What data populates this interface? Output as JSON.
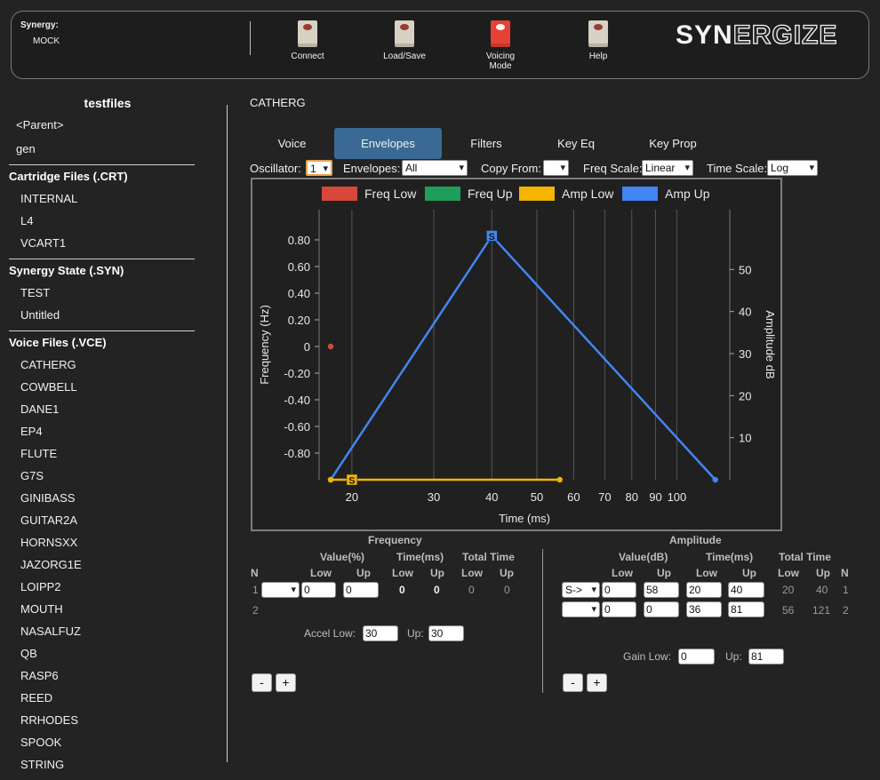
{
  "header": {
    "synergy_label": "Synergy:",
    "synergy_value": "MOCK",
    "buttons": [
      {
        "label_lines": [
          "Connect"
        ],
        "lit": false
      },
      {
        "label_lines": [
          "Load/Save"
        ],
        "lit": false
      },
      {
        "label_lines": [
          "Voicing",
          "Mode"
        ],
        "lit": true
      },
      {
        "label_lines": [
          "Help"
        ],
        "lit": false
      }
    ],
    "logo_solid": "SYN",
    "logo_outline": "ERGIZE"
  },
  "sidebar": {
    "title": "testfiles",
    "top_items": [
      "<Parent>",
      "gen"
    ],
    "sections": [
      {
        "heading": "Cartridge Files (.CRT)",
        "items": [
          "INTERNAL",
          "L4",
          "VCART1"
        ]
      },
      {
        "heading": "Synergy State (.SYN)",
        "items": [
          "TEST",
          "Untitled"
        ]
      },
      {
        "heading": "Voice Files (.VCE)",
        "items": [
          "CATHERG",
          "COWBELL",
          "DANE1",
          "EP4",
          "FLUTE",
          "G7S",
          "GINIBASS",
          "GUITAR2A",
          "HORNSXX",
          "JAZORG1E",
          "LOIPP2",
          "MOUTH",
          "NASALFUZ",
          "QB",
          "RASP6",
          "REED",
          "RRHODES",
          "SPOOK",
          "STRING"
        ]
      }
    ]
  },
  "main": {
    "voice_name": "CATHERG",
    "tabs": [
      "Voice",
      "Envelopes",
      "Filters",
      "Key Eq",
      "Key Prop"
    ],
    "active_tab": "Envelopes",
    "controls": {
      "oscillator_label": "Oscillator:",
      "oscillator_value": "1",
      "envelopes_label": "Envelopes:",
      "envelopes_value": "All",
      "copy_from_label": "Copy From:",
      "copy_from_value": "",
      "freq_scale_label": "Freq Scale:",
      "freq_scale_value": "Linear",
      "time_scale_label": "Time Scale:",
      "time_scale_value": "Log"
    }
  },
  "chart_data": {
    "type": "line",
    "legend": [
      {
        "name": "Freq Low",
        "color": "#d8483a"
      },
      {
        "name": "Freq Up",
        "color": "#1f9d5a"
      },
      {
        "name": "Amp Low",
        "color": "#f4b400"
      },
      {
        "name": "Amp Up",
        "color": "#4285f4"
      }
    ],
    "legend_position": "top",
    "xlabel": "Time (ms)",
    "ylabel_left": "Frequency (Hz)",
    "ylabel_right": "Amplitude dB",
    "x_scale": "log",
    "xlim": [
      17,
      130
    ],
    "x_ticks": [
      20,
      30,
      40,
      50,
      60,
      70,
      80,
      90,
      100
    ],
    "ylim_left": [
      -1.0,
      1.0
    ],
    "y_left_ticks": [
      "0.80",
      "0.60",
      "0.40",
      "0.20",
      "0",
      "-0.20",
      "-0.40",
      "-0.60",
      "-0.80"
    ],
    "y_left_values": [
      0.8,
      0.6,
      0.4,
      0.2,
      0,
      -0.2,
      -0.4,
      -0.6,
      -0.8
    ],
    "ylim_right": [
      0,
      60
    ],
    "y_right_ticks": [
      10,
      20,
      30,
      40,
      50
    ],
    "series": [
      {
        "name": "Freq Low",
        "axis": "left",
        "points": [
          [
            18,
            0
          ]
        ]
      },
      {
        "name": "Amp Up",
        "axis": "right",
        "points": [
          [
            18,
            0
          ],
          [
            40,
            58
          ],
          [
            121,
            0
          ]
        ],
        "sustain_index": 1
      },
      {
        "name": "Amp Low",
        "axis": "right",
        "points": [
          [
            18,
            0
          ],
          [
            20,
            0
          ],
          [
            56,
            0
          ]
        ],
        "sustain_index": 1
      }
    ],
    "sustain_marker": "S"
  },
  "freq_panel": {
    "title": "Frequency",
    "col_value": "Value(%)",
    "col_time": "Time(ms)",
    "col_total": "Total Time",
    "n": "N",
    "low": "Low",
    "up": "Up",
    "rows": [
      {
        "n": "1",
        "sel": "",
        "val_low": "0",
        "val_up": "0",
        "time_low": "0",
        "time_up": "0",
        "total_low": "0",
        "total_up": "0"
      },
      {
        "n": "2"
      }
    ],
    "accel_low_label": "Accel Low:",
    "accel_low": "30",
    "accel_up_label": "Up:",
    "accel_up": "30",
    "minus": "-",
    "plus": "+"
  },
  "amp_panel": {
    "title": "Amplitude",
    "col_value": "Value(dB)",
    "col_time": "Time(ms)",
    "col_total": "Total Time",
    "n": "N",
    "low": "Low",
    "up": "Up",
    "rows": [
      {
        "n": "1",
        "sel": "S->",
        "val_low": "0",
        "val_up": "58",
        "time_low": "20",
        "time_up": "40",
        "total_low": "20",
        "total_up": "40"
      },
      {
        "n": "2",
        "sel": "",
        "val_low": "0",
        "val_up": "0",
        "time_low": "36",
        "time_up": "81",
        "total_low": "56",
        "total_up": "121"
      }
    ],
    "gain_low_label": "Gain Low:",
    "gain_low": "0",
    "gain_up_label": "Up:",
    "gain_up": "81",
    "minus": "-",
    "plus": "+"
  }
}
